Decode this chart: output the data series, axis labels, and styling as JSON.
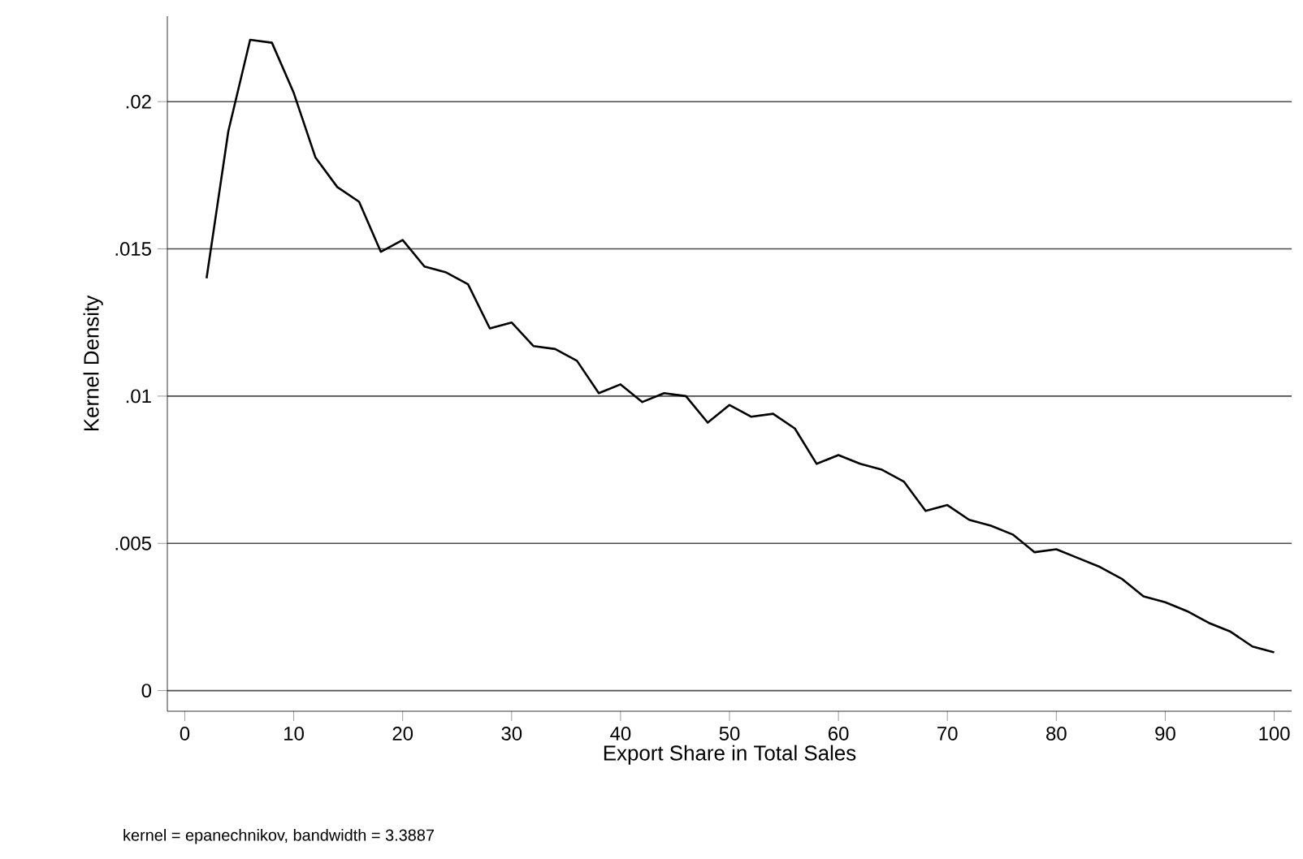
{
  "chart_data": {
    "type": "line",
    "xlabel": "Export Share in Total Sales",
    "ylabel": "Kernel Density",
    "annotations": [
      "kernel = epanechnikov, bandwidth = 3.3887"
    ],
    "x": [
      2,
      4,
      6,
      8,
      10,
      12,
      14,
      16,
      18,
      20,
      22,
      24,
      26,
      28,
      30,
      32,
      34,
      36,
      38,
      40,
      42,
      44,
      46,
      48,
      50,
      52,
      54,
      56,
      58,
      60,
      62,
      64,
      66,
      68,
      70,
      72,
      74,
      76,
      78,
      80,
      82,
      84,
      86,
      88,
      90,
      92,
      94,
      96,
      98,
      100
    ],
    "series": [
      {
        "color": "#000000",
        "values": [
          0.014,
          0.019,
          0.0221,
          0.022,
          0.0203,
          0.0181,
          0.0171,
          0.0166,
          0.0149,
          0.0153,
          0.0144,
          0.0142,
          0.0138,
          0.0123,
          0.0125,
          0.0117,
          0.0116,
          0.0112,
          0.0101,
          0.0104,
          0.0098,
          0.0101,
          0.01,
          0.0091,
          0.0097,
          0.0093,
          0.0094,
          0.0089,
          0.0077,
          0.008,
          0.0077,
          0.0075,
          0.0071,
          0.0061,
          0.0063,
          0.0058,
          0.0056,
          0.0053,
          0.0047,
          0.0048,
          0.0045,
          0.0042,
          0.0038,
          0.0032,
          0.003,
          0.0027,
          0.0023,
          0.002,
          0.0015,
          0.0013
        ]
      }
    ],
    "xlim": [
      -1.6,
      101.6
    ],
    "ylim": [
      -0.0007,
      0.0229
    ],
    "xticks": [
      0,
      10,
      20,
      30,
      40,
      50,
      60,
      70,
      80,
      90,
      100
    ],
    "yticks": [
      {
        "value": 0,
        "label": "0"
      },
      {
        "value": 0.005,
        "label": ".005"
      },
      {
        "value": 0.01,
        "label": ".01"
      },
      {
        "value": 0.015,
        "label": ".015"
      },
      {
        "value": 0.02,
        "label": ".02"
      }
    ],
    "grid": "y",
    "marker": "none",
    "line_style": "solid"
  }
}
